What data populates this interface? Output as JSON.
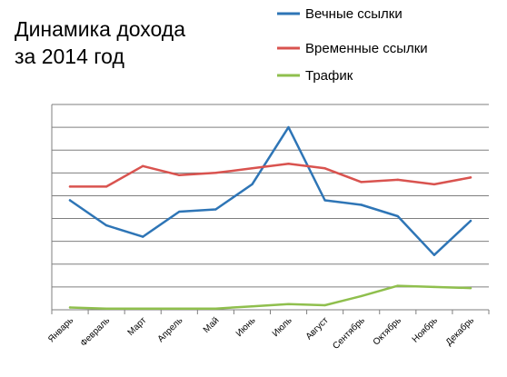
{
  "chart_data": {
    "type": "line",
    "title_lines": [
      "Динамика дохода",
      "за 2014 год"
    ],
    "categories": [
      "Январь",
      "Февраль",
      "Март",
      "Апрель",
      "Май",
      "Июнь",
      "Июль",
      "Август",
      "Сентябрь",
      "Октябрь",
      "Ноябрь",
      "Декабрь"
    ],
    "ylim": [
      0,
      9
    ],
    "y_grid_step": 1,
    "grid": true,
    "y_tick_labels_shown": false,
    "legend_position": "top-right",
    "series": [
      {
        "name": "Вечные ссылки",
        "color": "#2e75b6",
        "values": [
          4.8,
          3.7,
          3.2,
          4.3,
          4.4,
          5.5,
          8.0,
          4.8,
          4.6,
          4.1,
          2.4,
          3.9
        ]
      },
      {
        "name": "Временные ссылки",
        "color": "#d9534f",
        "values": [
          5.4,
          5.4,
          6.3,
          5.9,
          6.0,
          6.2,
          6.4,
          6.2,
          5.6,
          5.7,
          5.5,
          5.8
        ]
      },
      {
        "name": "Трафик",
        "color": "#8fbf4d",
        "values": [
          0.1,
          0.05,
          0.05,
          0.05,
          0.05,
          0.15,
          0.25,
          0.2,
          0.6,
          1.05,
          1.0,
          0.95
        ]
      }
    ]
  }
}
